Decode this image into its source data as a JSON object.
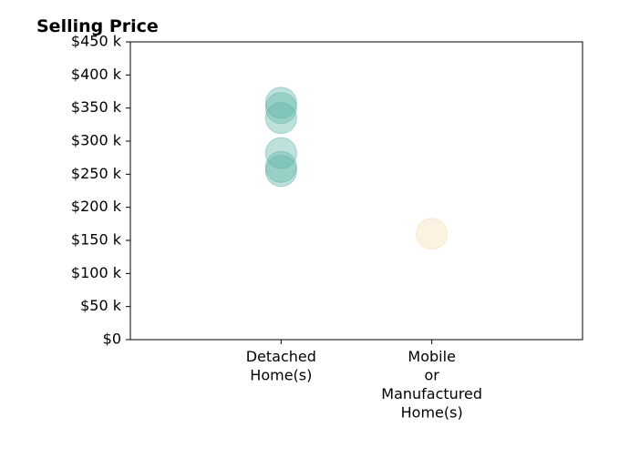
{
  "chart_data": {
    "type": "scatter",
    "title": "Selling Price",
    "xlabel": "",
    "ylabel": "",
    "categories": [
      [
        "Detached",
        "Home(s)"
      ],
      [
        "Mobile",
        "or",
        "Manufactured",
        "Home(s)"
      ]
    ],
    "ylim": [
      0,
      450000
    ],
    "yticks": [
      {
        "value": 0,
        "label": "$0"
      },
      {
        "value": 50000,
        "label": "$50 k"
      },
      {
        "value": 100000,
        "label": "$100 k"
      },
      {
        "value": 150000,
        "label": "$150 k"
      },
      {
        "value": 200000,
        "label": "$200 k"
      },
      {
        "value": 250000,
        "label": "$250 k"
      },
      {
        "value": 300000,
        "label": "$300 k"
      },
      {
        "value": 350000,
        "label": "$350 k"
      },
      {
        "value": 400000,
        "label": "$400 k"
      },
      {
        "value": 450000,
        "label": "$450 k"
      }
    ],
    "grid": false,
    "series": [
      {
        "category_index": 0,
        "color": "#5fb3a8",
        "values": [
          358000,
          350000,
          335000,
          282000,
          261000,
          255000
        ]
      },
      {
        "category_index": 1,
        "color": "#f5deb3",
        "values": [
          160000
        ]
      }
    ]
  }
}
